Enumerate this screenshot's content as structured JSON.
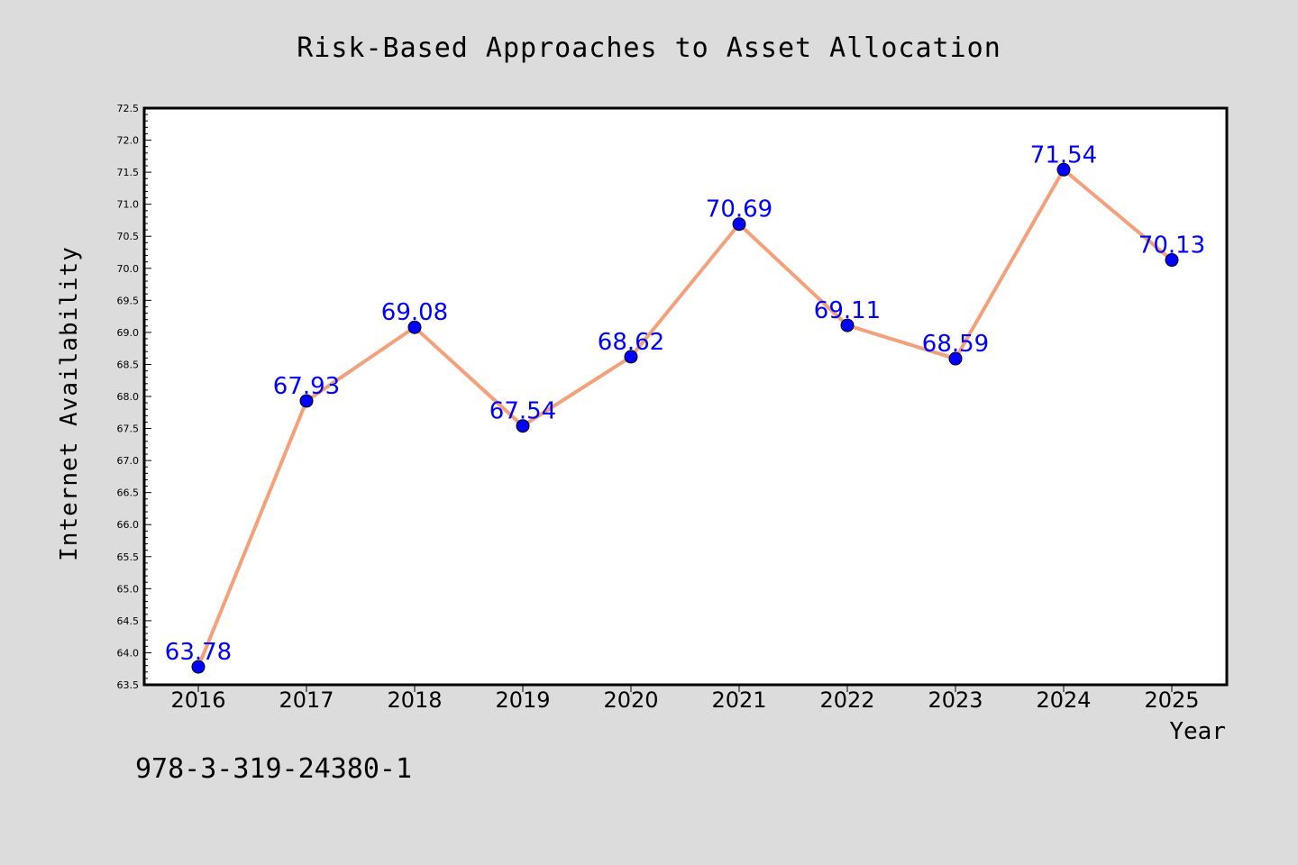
{
  "chart_data": {
    "type": "line",
    "title": "Risk-Based Approaches to Asset Allocation",
    "xlabel": "Year",
    "ylabel": "Internet Availability",
    "x": [
      "2016",
      "2017",
      "2018",
      "2019",
      "2020",
      "2021",
      "2022",
      "2023",
      "2024",
      "2025"
    ],
    "series": [
      {
        "values": [
          63.78,
          67.93,
          69.08,
          67.54,
          68.62,
          70.69,
          69.11,
          68.59,
          71.54,
          70.13
        ],
        "labels": [
          "63.78",
          "67.93",
          "69.08",
          "67.54",
          "68.62",
          "70.69",
          "69.11",
          "68.59",
          "71.54",
          "70.13"
        ],
        "line_color": "#f4a07a",
        "marker_color": "#0000ff",
        "label_color": "#0000ff"
      }
    ],
    "ylim": [
      63.5,
      72.5
    ],
    "yticks": [
      "63.5",
      "64.0",
      "64.5",
      "65.0",
      "65.5",
      "66.0",
      "66.5",
      "67.0",
      "67.5",
      "68.0",
      "68.5",
      "69.0",
      "69.5",
      "70.0",
      "70.5",
      "71.0",
      "71.5",
      "72.0",
      "72.5"
    ],
    "grid": false,
    "background": "#dcdcdc",
    "plot_background": "#ffffff"
  },
  "footer_text": "978-3-319-24380-1"
}
